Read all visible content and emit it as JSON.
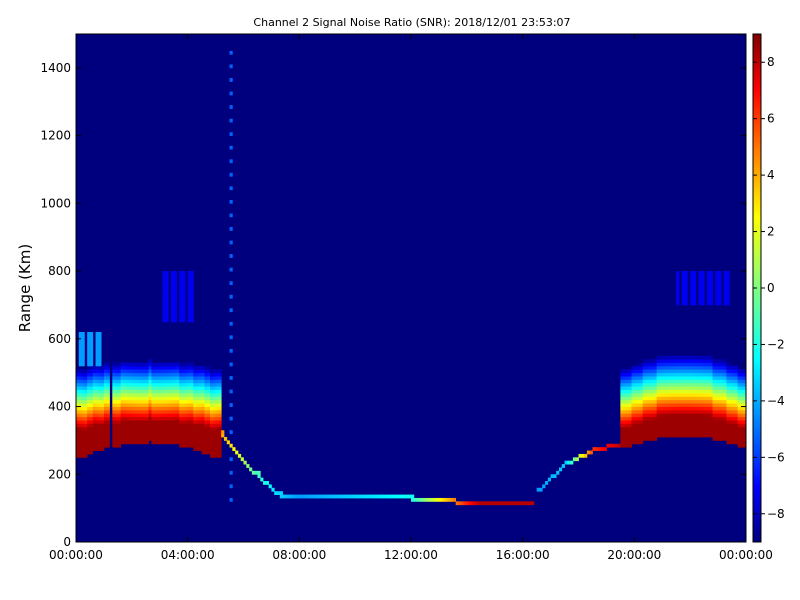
{
  "chart_data": {
    "type": "heatmap",
    "title": "Channel 2 Signal Noise Ratio (SNR): 2018/12/01 23:53:07",
    "ylabel": "Range (Km)",
    "xlabel": "",
    "x_range_hours": [
      0,
      24
    ],
    "y_range_km": [
      0,
      1500
    ],
    "color_range": [
      -9,
      9
    ],
    "colormap": "jet",
    "background_value": -8.5,
    "x_tick_labels": [
      "00:00:00",
      "04:00:00",
      "08:00:00",
      "12:00:00",
      "16:00:00",
      "20:00:00",
      "00:00:00"
    ],
    "y_tick_labels": [
      "0",
      "200",
      "400",
      "600",
      "800",
      "1000",
      "1200",
      "1400"
    ],
    "colorbar_tick_labels": [
      "8",
      "6",
      "4",
      "2",
      "0",
      "−2",
      "−4",
      "−6",
      "−8"
    ],
    "features": [
      {
        "shape": "band",
        "hours": [
          0.0,
          5.2
        ],
        "range_km_start": [
          250,
          330
        ],
        "range_km_peak": [
          300,
          360
        ],
        "width_km": 80,
        "peak_snr": 8.5
      },
      {
        "shape": "band",
        "hours": [
          19.5,
          24.0
        ],
        "range_km_start": [
          280,
          330
        ],
        "range_km_peak": [
          320,
          380
        ],
        "width_km": 80,
        "peak_snr": 8.5
      },
      {
        "shape": "trace",
        "points_hours": [
          5.2,
          5.8,
          6.5,
          7.3,
          8.0,
          12.0,
          14.5,
          16.5
        ],
        "points_km": [
          320,
          260,
          200,
          140,
          130,
          130,
          115,
          115
        ],
        "snr": [
          4,
          2,
          -1,
          -3,
          -4,
          -2,
          8,
          8
        ]
      },
      {
        "shape": "trace",
        "points_hours": [
          16.5,
          17.5,
          18.5,
          19.5
        ],
        "points_km": [
          150,
          230,
          270,
          290
        ],
        "snr": [
          -4,
          -3,
          6,
          8
        ]
      },
      {
        "shape": "patch",
        "hours": [
          0.0,
          1.0
        ],
        "range_km": [
          520,
          620
        ],
        "snr": -4
      },
      {
        "shape": "patch",
        "hours": [
          3.0,
          4.3
        ],
        "range_km": [
          650,
          800
        ],
        "snr": -7
      },
      {
        "shape": "patch",
        "hours": [
          21.5,
          23.5
        ],
        "range_km": [
          700,
          800
        ],
        "snr": -7
      },
      {
        "shape": "vertical_streak",
        "hours": 5.6,
        "range_km": [
          120,
          1480
        ],
        "snr": -5
      }
    ]
  }
}
